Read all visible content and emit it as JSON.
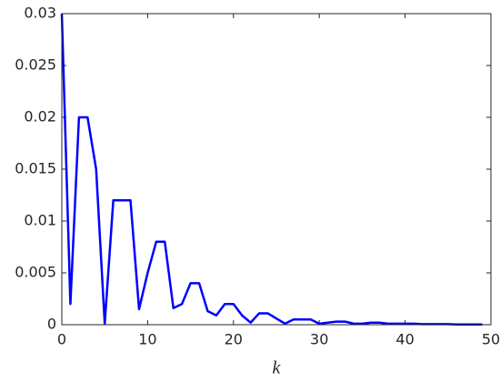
{
  "chart_data": {
    "type": "line",
    "x_label": "k",
    "x": [
      0,
      1,
      2,
      3,
      4,
      5,
      6,
      7,
      8,
      9,
      10,
      11,
      12,
      13,
      14,
      15,
      16,
      17,
      18,
      19,
      20,
      21,
      22,
      23,
      24,
      25,
      26,
      27,
      28,
      29,
      30,
      31,
      32,
      33,
      34,
      35,
      36,
      37,
      38,
      39,
      40,
      41,
      42,
      43,
      44,
      45,
      46,
      47,
      48,
      49
    ],
    "series": [
      {
        "color": "#0000ff",
        "values": [
          0.03,
          0.002,
          0.02,
          0.02,
          0.015,
          0.0001,
          0.012,
          0.012,
          0.012,
          0.0015,
          0.005,
          0.008,
          0.008,
          0.0016,
          0.002,
          0.004,
          0.004,
          0.0013,
          0.0009,
          0.002,
          0.002,
          0.0009,
          0.0002,
          0.0011,
          0.0011,
          0.0006,
          0.0001,
          0.0005,
          0.0005,
          0.0005,
          0.0001,
          0.0002,
          0.0003,
          0.0003,
          0.0001,
          0.0001,
          0.0002,
          0.0002,
          0.0001,
          0.0001,
          0.0001,
          0.0001,
          5e-05,
          5e-05,
          5e-05,
          5e-05,
          2e-05,
          2e-05,
          2e-05,
          2e-05
        ]
      }
    ],
    "xlim": [
      0,
      50
    ],
    "xticks": [
      0,
      10,
      20,
      30,
      40,
      50
    ],
    "ylim": [
      0,
      0.03
    ],
    "yticks": [
      0,
      0.005,
      0.01,
      0.015,
      0.02,
      0.025,
      0.03
    ]
  }
}
